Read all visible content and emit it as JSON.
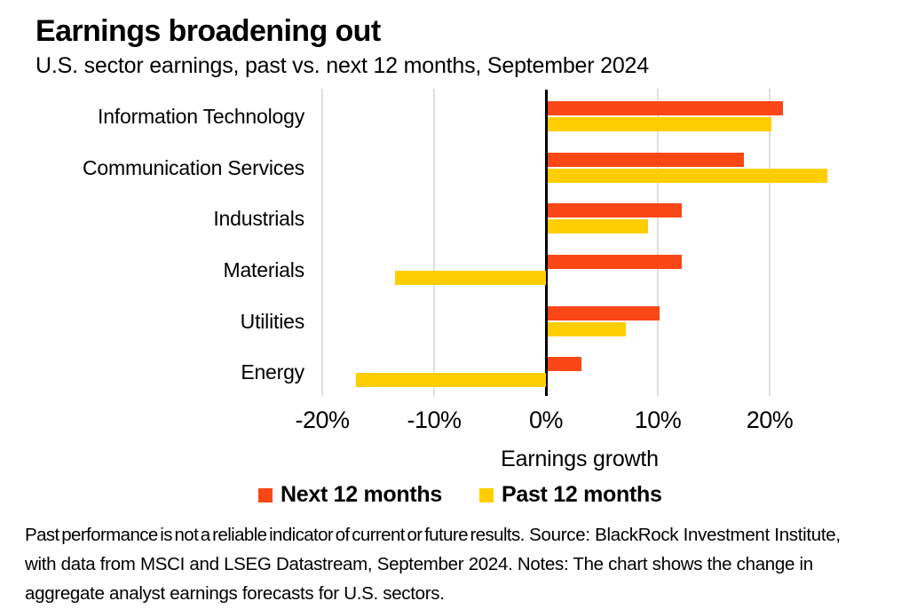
{
  "header": {
    "title": "Earnings broadening out",
    "subtitle": "U.S. sector earnings, past vs. next 12 months, September 2024"
  },
  "chart_data": {
    "type": "bar",
    "orientation": "horizontal",
    "title": "Earnings broadening out",
    "subtitle": "U.S. sector earnings, past vs. next 12 months, September 2024",
    "categories": [
      "Information Technology",
      "Communication Services",
      "Industrials",
      "Materials",
      "Utilities",
      "Energy"
    ],
    "series": [
      {
        "name": "Next 12 months",
        "color": "#fb4616",
        "values": [
          21,
          17.5,
          12,
          12,
          10,
          3
        ]
      },
      {
        "name": "Past 12 months",
        "color": "#ffce00",
        "values": [
          20,
          25,
          9,
          -13.5,
          7,
          -17
        ]
      }
    ],
    "xlabel": "Earnings growth",
    "x_ticks": [
      {
        "value": -20,
        "label": "-20%"
      },
      {
        "value": -10,
        "label": "-10%"
      },
      {
        "value": 0,
        "label": "0%"
      },
      {
        "value": 10,
        "label": "10%"
      },
      {
        "value": 20,
        "label": "20%"
      }
    ],
    "xlim": [
      -21,
      27
    ],
    "unit": "%",
    "grid": "vertical",
    "gridline_color": "#dedede",
    "zero_axis_color": "#000000",
    "legend_position": "bottom"
  },
  "footer": {
    "disclaimer": "Past performance is not a reliable indicator of current or future results.",
    "source": "Source: BlackRock Investment Institute, with data from MSCI and LSEG Datastream, September 2024. Notes: The chart shows the change in aggregate analyst earnings forecasts for U.S. sectors."
  }
}
